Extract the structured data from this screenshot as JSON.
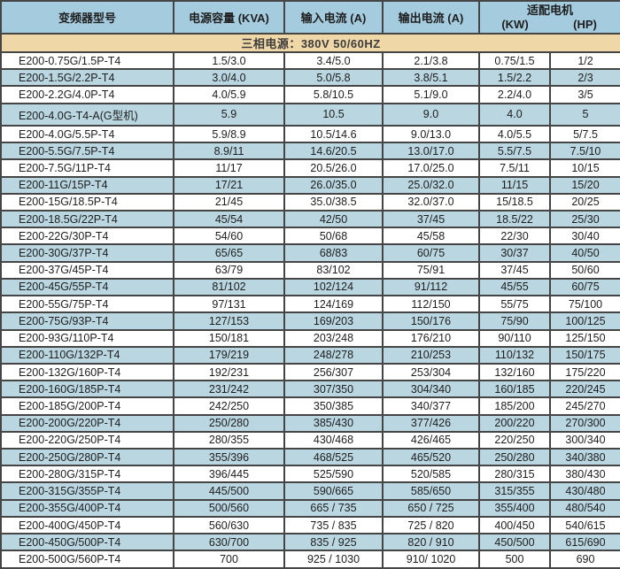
{
  "header": {
    "col_model": "变频器型号",
    "col_capacity": "电源容量 (KVA)",
    "col_input": "输入电流 (A)",
    "col_output": "输出电流 (A)",
    "col_motor": "适配电机",
    "col_kw": "(KW)",
    "col_hp": "(HP)"
  },
  "banner": "三相电源：380V 50/60HZ",
  "table": {
    "columns": [
      "变频器型号",
      "电源容量 (KVA)",
      "输入电流 (A)",
      "输出电流 (A)",
      "适配电机 (KW)",
      "适配电机 (HP)"
    ],
    "rows": [
      [
        "E200-0.75G/1.5P-T4",
        "1.5/3.0",
        "3.4/5.0",
        "2.1/3.8",
        "0.75/1.5",
        "1/2"
      ],
      [
        "E200-1.5G/2.2P-T4",
        "3.0/4.0",
        "5.0/5.8",
        "3.8/5.1",
        "1.5/2.2",
        "2/3"
      ],
      [
        "E200-2.2G/4.0P-T4",
        "4.0/5.9",
        "5.8/10.5",
        "5.1/9.0",
        "2.2/4.0",
        "3/5"
      ],
      [
        "E200-4.0G-T4-A(G型机)",
        "5.9",
        "10.5",
        "9.0",
        "4.0",
        "5"
      ],
      [
        "E200-4.0G/5.5P-T4",
        "5.9/8.9",
        "10.5/14.6",
        "9.0/13.0",
        "4.0/5.5",
        "5/7.5"
      ],
      [
        "E200-5.5G/7.5P-T4",
        "8.9/11",
        "14.6/20.5",
        "13.0/17.0",
        "5.5/7.5",
        "7.5/10"
      ],
      [
        "E200-7.5G/11P-T4",
        "11/17",
        "20.5/26.0",
        "17.0/25.0",
        "7.5/11",
        "10/15"
      ],
      [
        "E200-11G/15P-T4",
        "17/21",
        "26.0/35.0",
        "25.0/32.0",
        "11/15",
        "15/20"
      ],
      [
        "E200-15G/18.5P-T4",
        "21/45",
        "35.0/38.5",
        "32.0/37.0",
        "15/18.5",
        "20/25"
      ],
      [
        "E200-18.5G/22P-T4",
        "45/54",
        "42/50",
        "37/45",
        "18.5/22",
        "25/30"
      ],
      [
        "E200-22G/30P-T4",
        "54/60",
        "50/68",
        "45/58",
        "22/30",
        "30/40"
      ],
      [
        "E200-30G/37P-T4",
        "65/65",
        "68/83",
        "60/75",
        "30/37",
        "40/50"
      ],
      [
        "E200-37G/45P-T4",
        "63/79",
        "83/102",
        "75/91",
        "37/45",
        "50/60"
      ],
      [
        "E200-45G/55P-T4",
        "81/102",
        "102/124",
        "91/112",
        "45/55",
        "60/75"
      ],
      [
        "E200-55G/75P-T4",
        "97/131",
        "124/169",
        "112/150",
        "55/75",
        "75/100"
      ],
      [
        "E200-75G/93P-T4",
        "127/153",
        "169/203",
        "150/176",
        "75/90",
        "100/125"
      ],
      [
        "E200-93G/110P-T4",
        "150/181",
        "203/248",
        "176/210",
        "90/110",
        "125/150"
      ],
      [
        "E200-110G/132P-T4",
        "179/219",
        "248/278",
        "210/253",
        "110/132",
        "150/175"
      ],
      [
        "E200-132G/160P-T4",
        "192/231",
        "256/307",
        "253/304",
        "132/160",
        "175/220"
      ],
      [
        "E200-160G/185P-T4",
        "231/242",
        "307/350",
        "304/340",
        "160/185",
        "220/245"
      ],
      [
        "E200-185G/200P-T4",
        "242/250",
        "350/385",
        "340/377",
        "185/200",
        "245/270"
      ],
      [
        "E200-200G/220P-T4",
        "250/280",
        "385/430",
        "377/426",
        "200/220",
        "270/300"
      ],
      [
        "E200-220G/250P-T4",
        "280/355",
        "430/468",
        "426/465",
        "220/250",
        "300/340"
      ],
      [
        "E200-250G/280P-T4",
        "355/396",
        "468/525",
        "465/520",
        "250/280",
        "340/380"
      ],
      [
        "E200-280G/315P-T4",
        "396/445",
        "525/590",
        "520/585",
        "280/315",
        "380/430"
      ],
      [
        "E200-315G/355P-T4",
        "445/500",
        "590/665",
        "585/650",
        "315/355",
        "430/480"
      ],
      [
        "E200-355G/400P-T4",
        "500/560",
        "665 / 735",
        "650 / 725",
        "355/400",
        "480/540"
      ],
      [
        "E200-400G/450P-T4",
        "560/630",
        "735 / 835",
        "725 / 820",
        "400/450",
        "540/615"
      ],
      [
        "E200-450G/500P-T4",
        "630/700",
        "835 / 925",
        "820 / 910",
        "450/500",
        "615/690"
      ],
      [
        "E200-500G/560P-T4",
        "700",
        "925 / 1030",
        "910/ 1020",
        "500",
        "690"
      ]
    ],
    "shaded_rows": [
      2,
      4,
      6,
      8,
      10,
      12,
      14,
      16,
      18,
      20,
      22,
      24,
      26,
      27,
      29
    ]
  },
  "colors": {
    "header_bg": "#a5ccde",
    "stripe_bg": "#b9d6e1",
    "banner_bg": "#efd7a7",
    "grid_line": "#454545",
    "text": "#1e1e1e"
  }
}
